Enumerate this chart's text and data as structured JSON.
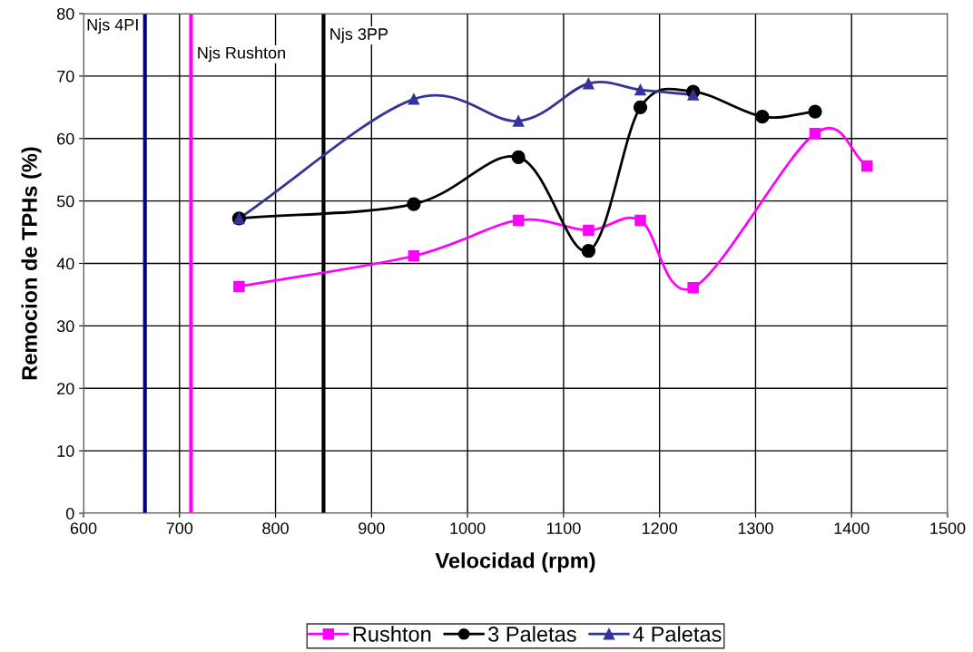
{
  "chart_data": {
    "type": "line",
    "xlabel": "Velocidad (rpm)",
    "ylabel": "Remocion de TPHs (%)",
    "series": [
      {
        "name": "Rushton",
        "color": "#ff00ff",
        "marker": "square",
        "x": [
          762,
          944,
          1053,
          1126,
          1180,
          1235,
          1362,
          1416
        ],
        "values": [
          36.3,
          41.2,
          46.9,
          45.3,
          46.9,
          36.1,
          60.8,
          55.6
        ]
      },
      {
        "name": "3 Paletas",
        "color": "#000000",
        "marker": "circle",
        "x": [
          762,
          944,
          1053,
          1126,
          1180,
          1235,
          1307,
          1362
        ],
        "values": [
          47.2,
          49.5,
          57.0,
          42.0,
          65.0,
          67.5,
          63.5,
          64.3
        ]
      },
      {
        "name": "4 Paletas",
        "color": "#333399",
        "marker": "triangle",
        "x": [
          762,
          944,
          1053,
          1126,
          1180,
          1235
        ],
        "values": [
          47.2,
          66.3,
          62.8,
          68.8,
          67.8,
          67.0
        ]
      }
    ],
    "ref_lines": [
      {
        "axis": "x",
        "value": 664,
        "label": "Njs 4PI",
        "color": "#000080"
      },
      {
        "axis": "x",
        "value": 712,
        "label": "Njs Rushton",
        "color": "#ff00ff"
      },
      {
        "axis": "x",
        "value": 850,
        "label": "Njs 3PP",
        "color": "#000000"
      }
    ],
    "xlim": [
      600,
      1500
    ],
    "xticks": [
      600,
      700,
      800,
      900,
      1000,
      1100,
      1200,
      1300,
      1400,
      1500
    ],
    "ylim": [
      0,
      80
    ],
    "yticks": [
      0,
      10,
      20,
      30,
      40,
      50,
      60,
      70,
      80
    ],
    "grid": true,
    "legend": "bottom",
    "line_style": "solid"
  }
}
